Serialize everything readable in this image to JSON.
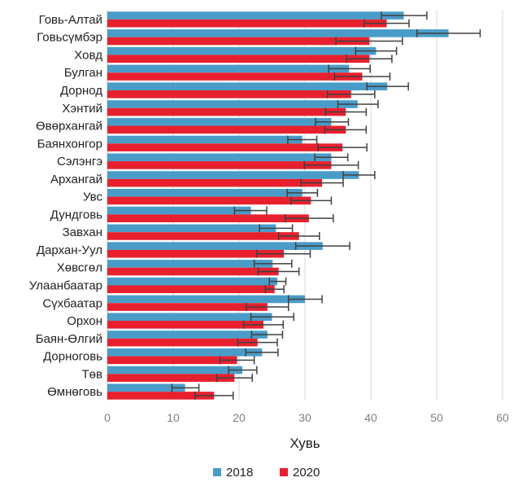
{
  "chart_data": {
    "type": "bar",
    "orientation": "horizontal",
    "categories": [
      "Говь-Алтай",
      "Говьсүмбэр",
      "Ховд",
      "Булган",
      "Дорнод",
      "Хэнтий",
      "Өвөрхангай",
      "Баянхонгор",
      "Сэлэнгэ",
      "Архангай",
      "Увс",
      "Дундговь",
      "Завхан",
      "Дархан-Уул",
      "Хөвсгөл",
      "Улаанбаатар",
      "Сүхбаатар",
      "Орхон",
      "Баян-Өлгий",
      "Дорноговь",
      "Төв",
      "Өмнөговь"
    ],
    "series": [
      {
        "name": "2018",
        "color": "#4a9cc8",
        "values": [
          45.0,
          51.8,
          40.8,
          36.7,
          42.5,
          38.0,
          34.0,
          29.6,
          34.0,
          38.2,
          29.6,
          21.8,
          25.6,
          32.7,
          25.1,
          25.8,
          30.0,
          25.0,
          24.3,
          23.5,
          20.5,
          11.8
        ],
        "error_low": [
          41.6,
          47.0,
          37.7,
          33.6,
          39.4,
          35.0,
          31.6,
          27.4,
          31.5,
          35.8,
          27.3,
          19.3,
          23.1,
          28.6,
          22.3,
          24.6,
          27.5,
          21.8,
          21.9,
          21.0,
          18.4,
          9.8
        ],
        "error_high": [
          48.5,
          56.6,
          43.9,
          39.9,
          45.7,
          41.1,
          36.6,
          31.8,
          36.5,
          40.6,
          31.9,
          24.2,
          28.1,
          36.8,
          28.0,
          27.1,
          32.6,
          28.3,
          26.6,
          25.9,
          22.7,
          13.9
        ]
      },
      {
        "name": "2020",
        "color": "#e8202e",
        "values": [
          42.4,
          39.8,
          39.8,
          38.7,
          37.0,
          36.2,
          36.2,
          35.7,
          34.0,
          32.6,
          30.9,
          30.6,
          29.1,
          26.8,
          26.0,
          25.4,
          24.3,
          23.7,
          22.8,
          19.7,
          19.3,
          16.2
        ],
        "error_low": [
          39.0,
          34.7,
          36.3,
          34.5,
          33.4,
          33.1,
          33.0,
          32.0,
          29.9,
          29.4,
          27.9,
          27.0,
          26.0,
          22.7,
          22.9,
          24.0,
          21.1,
          20.7,
          19.8,
          17.1,
          16.6,
          13.3
        ],
        "error_high": [
          45.8,
          44.8,
          43.2,
          42.9,
          40.6,
          39.3,
          39.3,
          39.4,
          38.1,
          35.8,
          34.0,
          34.3,
          32.2,
          30.8,
          29.1,
          26.8,
          27.5,
          26.7,
          25.8,
          22.3,
          22.0,
          19.1
        ]
      }
    ],
    "xlabel": "Хувь",
    "xlim": [
      0,
      60
    ],
    "xticks": [
      0,
      10,
      20,
      30,
      40,
      50,
      60
    ],
    "grid": "vertical",
    "legend_position": "bottom-center"
  }
}
